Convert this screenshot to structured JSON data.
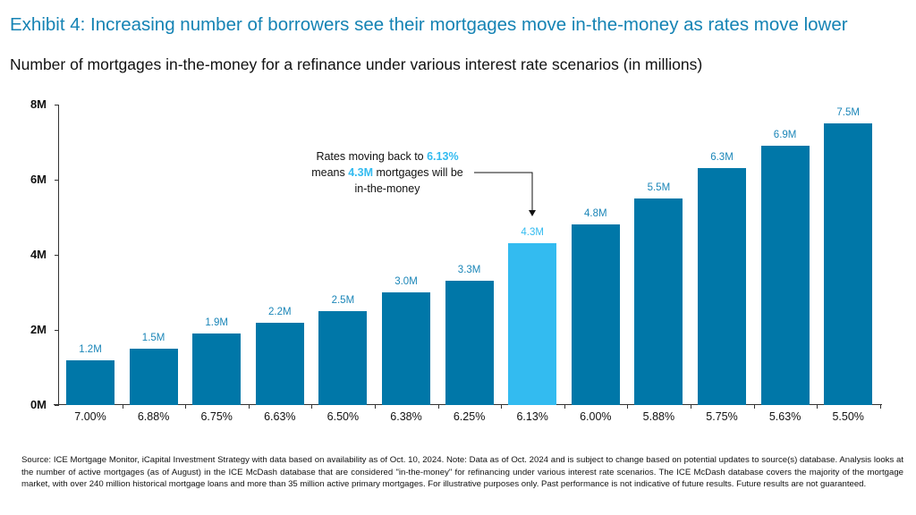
{
  "header": {
    "title": "Exhibit 4: Increasing number of borrowers see their mortgages move in-the-money as rates move lower",
    "subtitle": "Number of mortgages in-the-money for a refinance under various interest rate scenarios (in millions)"
  },
  "colors": {
    "title": "#1583b4",
    "bar": "#0077a8",
    "highlight_bar": "#33bbf0",
    "bar_label": "#1b86b8"
  },
  "annotation": {
    "line1_prefix": "Rates moving back to ",
    "line1_highlight": "6.13%",
    "line2_prefix": "means ",
    "line2_highlight": "4.3M",
    "line2_suffix": " mortgages will be",
    "line3": "in-the-money"
  },
  "footnote": {
    "text": "Source: ICE Mortgage Monitor, iCapital Investment Strategy with data based on availability as of Oct. 10, 2024. Note: Data as of Oct. 2024 and is subject to change based on potential updates to source(s) database. Analysis looks at the number of active mortgages (as of August) in the ICE McDash database that are considered \"in-the-money\" for refinancing under various interest rate scenarios. The ICE McDash database covers the majority of the mortgage market, with over 240 million historical mortgage loans and more than 35 million active primary mortgages. For illustrative purposes only. Past performance is not indicative of future results. Future results are not guaranteed."
  },
  "chart_data": {
    "type": "bar",
    "title": "Exhibit 4: Increasing number of borrowers see their mortgages move in-the-money as rates move lower",
    "subtitle": "Number of mortgages in-the-money for a refinance under various interest rate scenarios (in millions)",
    "xlabel": "",
    "ylabel": "",
    "categories": [
      "7.00%",
      "6.88%",
      "6.75%",
      "6.63%",
      "6.50%",
      "6.38%",
      "6.25%",
      "6.13%",
      "6.00%",
      "5.88%",
      "5.75%",
      "5.63%",
      "5.50%"
    ],
    "values": [
      1.2,
      1.5,
      1.9,
      2.2,
      2.5,
      3.0,
      3.3,
      4.3,
      4.8,
      5.5,
      6.3,
      6.9,
      7.5
    ],
    "data_labels": [
      "1.2M",
      "1.5M",
      "1.9M",
      "2.2M",
      "2.5M",
      "3.0M",
      "3.3M",
      "4.3M",
      "4.8M",
      "5.5M",
      "6.3M",
      "6.9M",
      "7.5M"
    ],
    "highlight_index": 7,
    "yticks": [
      "0M",
      "2M",
      "4M",
      "6M",
      "8M"
    ],
    "ylim": [
      0,
      8
    ],
    "grid": false,
    "legend": null,
    "annotation": "Rates moving back to 6.13% means 4.3M mortgages will be in-the-money"
  }
}
